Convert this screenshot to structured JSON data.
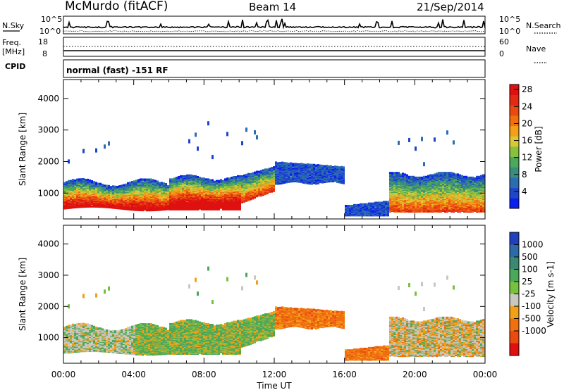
{
  "header": {
    "station": "McMurdo (fitACF)",
    "beam": "Beam 14",
    "date": "21/Sep/2014",
    "mode": "normal (fast) -151 RF"
  },
  "strip": {
    "nsky_label": "N.Sky",
    "nsearch_label": "N.Search",
    "freq_label_1": "Freq.",
    "freq_label_2": "[MHz]",
    "nave_label": "Nave",
    "cpid_label": "CPID",
    "noise_ticks_left": [
      "10^5",
      "10^0"
    ],
    "noise_ticks_right": [
      "10^5",
      "10^0"
    ],
    "freq_ticks": [
      "18",
      "8"
    ],
    "nave_ticks": [
      "60",
      "0"
    ]
  },
  "chart_data": [
    {
      "type": "heatmap",
      "name": "power-panel",
      "ylabel": "Slant Range [km]",
      "xlabel": "Time UT",
      "x_ticks": [
        "00:00",
        "04:00",
        "08:00",
        "12:00",
        "16:00",
        "20:00",
        "00:00"
      ],
      "y_ticks": [
        1000,
        2000,
        3000,
        4000
      ],
      "xlim": [
        0,
        24
      ],
      "ylim": [
        180,
        4600
      ],
      "colorbar": {
        "label": "Power [dB]",
        "ticks": [
          "4",
          "8",
          "12",
          "16",
          "20",
          "24",
          "28"
        ],
        "colors": [
          "#0a1ef0",
          "#1e46c8",
          "#2c6cb0",
          "#3a8c7c",
          "#4ca85a",
          "#88c040",
          "#d8c838",
          "#f2a018",
          "#f07010",
          "#ea4a10",
          "#e42a12",
          "#de1010"
        ]
      },
      "regions": [
        {
          "t": [
            0.0,
            6.0
          ],
          "range_km": [
            550,
            1400
          ],
          "level": "high"
        },
        {
          "t": [
            6.0,
            10.0
          ],
          "range_km": [
            520,
            1500
          ],
          "level": "high"
        },
        {
          "t": [
            10.0,
            12.0
          ],
          "range_km": [
            800,
            1800
          ],
          "level": "medium"
        },
        {
          "t": [
            12.0,
            16.0
          ],
          "range_km": [
            1300,
            2000
          ],
          "level": "low"
        },
        {
          "t": [
            16.0,
            18.5
          ],
          "range_km": [
            300,
            600
          ],
          "level": "low"
        },
        {
          "t": [
            18.5,
            24.0
          ],
          "range_km": [
            400,
            1700
          ],
          "level": "medium"
        },
        {
          "t": [
            7.5,
            11.0
          ],
          "range_km": [
            2400,
            2900
          ],
          "level": "low"
        }
      ]
    },
    {
      "type": "heatmap",
      "name": "velocity-panel",
      "ylabel": "Slant Range [km]",
      "xlabel": "Time UT",
      "x_ticks": [
        "00:00",
        "04:00",
        "08:00",
        "12:00",
        "16:00",
        "20:00",
        "00:00"
      ],
      "y_ticks": [
        1000,
        2000,
        3000,
        4000
      ],
      "xlim": [
        0,
        24
      ],
      "ylim": [
        180,
        4600
      ],
      "colorbar": {
        "label": "Velocity [m s-1]",
        "ticks": [
          "1000",
          "500",
          "100",
          "25",
          "-25",
          "-100",
          "-500",
          "-1000"
        ],
        "colors": [
          "#2040c0",
          "#2e6aa8",
          "#3c8870",
          "#4ca85a",
          "#78c040",
          "#c8c8c0",
          "#f2a018",
          "#f07010",
          "#ea4a10",
          "#de1010"
        ]
      }
    }
  ]
}
